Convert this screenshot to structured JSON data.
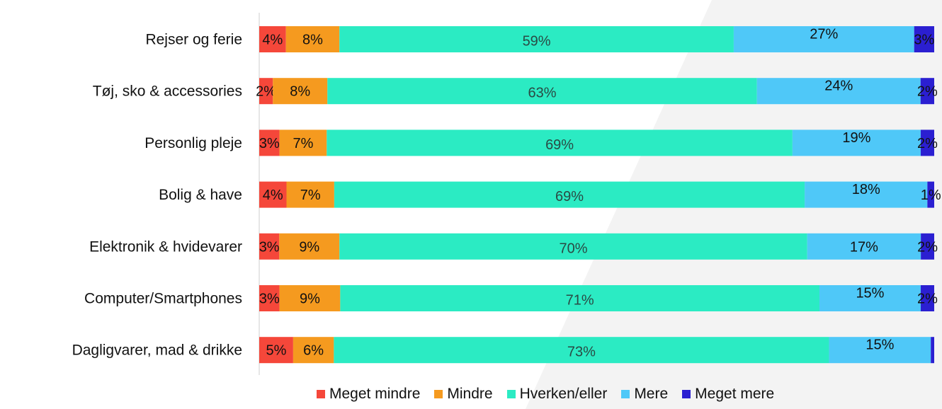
{
  "chart_data": {
    "type": "bar",
    "orientation": "horizontal",
    "stacked": true,
    "title": "",
    "xlabel": "",
    "ylabel": "",
    "xlim": [
      0,
      100
    ],
    "grid": false,
    "legend_position": "bottom",
    "categories": [
      "Rejser og ferie",
      "Tøj, sko & accessories",
      "Personlig pleje",
      "Bolig & have",
      "Elektronik & hvidevarer",
      "Computer/Smartphones",
      "Dagligvarer, mad & drikke"
    ],
    "series": [
      {
        "name": "Meget mindre",
        "color": "#F5473A",
        "values": [
          4,
          2,
          3,
          4,
          3,
          3,
          5
        ],
        "labels": [
          "4%",
          "2%",
          "3%",
          "4%",
          "3%",
          "3%",
          "5%"
        ]
      },
      {
        "name": "Mindre",
        "color": "#F59A1F",
        "values": [
          8,
          8,
          7,
          7,
          9,
          9,
          6
        ],
        "labels": [
          "8%",
          "8%",
          "7%",
          "7%",
          "9%",
          "9%",
          "6%"
        ]
      },
      {
        "name": "Hverken/eller",
        "color": "#2BEBC3",
        "values": [
          59,
          63,
          69,
          69,
          70,
          71,
          73
        ],
        "labels": [
          "59%",
          "63%",
          "69%",
          "69%",
          "70%",
          "71%",
          "73%"
        ]
      },
      {
        "name": "Mere",
        "color": "#4FC8F8",
        "values": [
          27,
          24,
          19,
          18,
          17,
          15,
          15
        ],
        "labels": [
          "27%",
          "24%",
          "19%",
          "18%",
          "17%",
          "15%",
          "15%"
        ]
      },
      {
        "name": "Meget mere",
        "color": "#2B1FD1",
        "values": [
          3,
          2,
          2,
          1,
          2,
          2,
          0.5
        ],
        "labels": [
          "3%",
          "2%",
          "2%",
          "1%",
          "2%",
          "2%",
          ""
        ]
      }
    ]
  }
}
